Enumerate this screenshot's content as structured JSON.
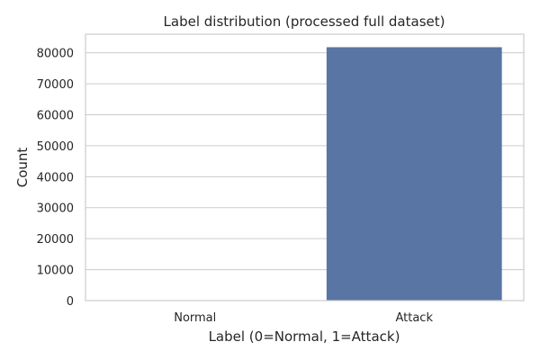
{
  "chart_data": {
    "type": "bar",
    "title": "Label distribution (processed full dataset)",
    "xlabel": "Label (0=Normal, 1=Attack)",
    "ylabel": "Count",
    "categories": [
      "Normal",
      "Attack"
    ],
    "values": [
      0,
      81800
    ],
    "ylim": [
      0,
      86000
    ],
    "yticks": [
      0,
      10000,
      20000,
      30000,
      40000,
      50000,
      60000,
      70000,
      80000
    ],
    "grid": "horizontal",
    "color": "#5975a4",
    "grid_color": "#cccccc"
  }
}
